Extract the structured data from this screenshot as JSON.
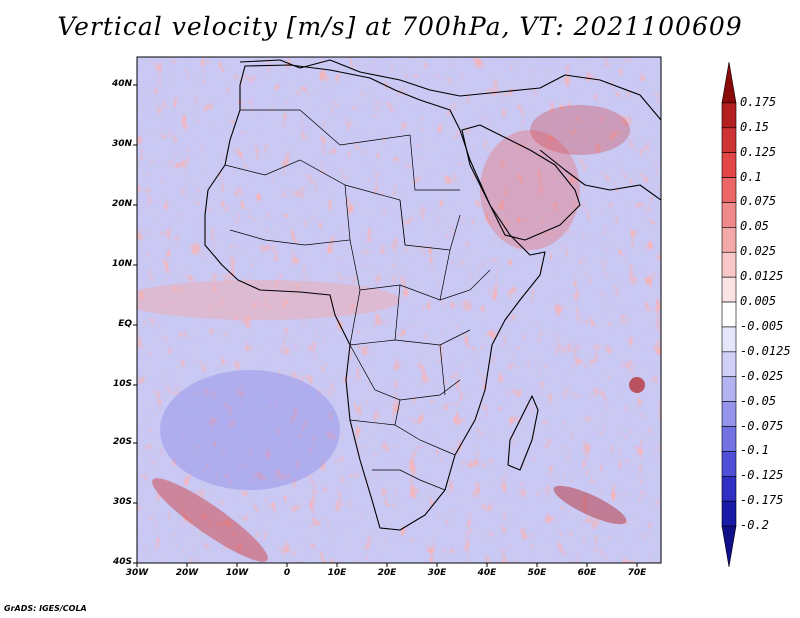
{
  "title": "Vertical velocity [m/s] at 700hPa, VT: 2021100609",
  "credit": "GrADS: IGES/COLA",
  "lat_labels": [
    "40N",
    "30N",
    "20N",
    "10N",
    "EQ",
    "10S",
    "20S",
    "30S",
    "40S"
  ],
  "lon_labels": [
    "30W",
    "20W",
    "10W",
    "0",
    "10E",
    "20E",
    "30E",
    "40E",
    "50E",
    "60E",
    "70E"
  ],
  "map_extent": {
    "lon": [
      -30,
      75
    ],
    "lat": [
      -40,
      45
    ]
  },
  "colorbar": {
    "labels": [
      "0.175",
      "0.15",
      "0.125",
      "0.1",
      "0.075",
      "0.05",
      "0.025",
      "0.0125",
      "0.005",
      "-0.005",
      "-0.0125",
      "-0.025",
      "-0.05",
      "-0.075",
      "-0.1",
      "-0.125",
      "-0.175",
      "-0.2"
    ],
    "colors": [
      "#8b0a0a",
      "#b41f1f",
      "#cf3434",
      "#e34646",
      "#eb6767",
      "#f08a8a",
      "#f4a9a9",
      "#f8c8c8",
      "#fbe3e3",
      "#ffffff",
      "#e6e6fb",
      "#cfcff7",
      "#b3b3f2",
      "#9494ec",
      "#7272e4",
      "#4f4fd8",
      "#2f2fc4",
      "#1a1aa8",
      "#10108a"
    ]
  },
  "colors": {
    "positive": "#d63030",
    "negative": "#3d3de0",
    "coast": "#000000"
  }
}
